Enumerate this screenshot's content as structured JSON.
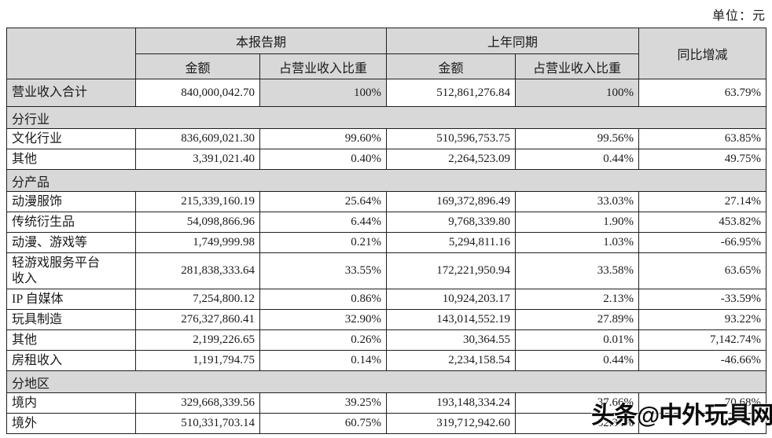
{
  "unit_label": "单位：元",
  "watermark": "头条@中外玩具网",
  "colors": {
    "shaded_bg": "#d8d8d8",
    "border": "#1f1f1f",
    "text": "#1a1a1a"
  },
  "table": {
    "header": {
      "current_period": "本报告期",
      "prior_period": "上年同期",
      "yoy_change": "同比增减",
      "amount": "金额",
      "share": "占营业收入比重"
    },
    "column_names": [
      "row-label",
      "current-amount",
      "current-share",
      "prior-amount",
      "prior-share",
      "yoy-change"
    ],
    "rows": [
      {
        "type": "total",
        "label": "营业收入合计",
        "cells": [
          "840,000,042.70",
          "100%",
          "512,861,276.84",
          "100%",
          "63.79%"
        ]
      },
      {
        "type": "section",
        "label": "分行业"
      },
      {
        "type": "data",
        "label": "文化行业",
        "cells": [
          "836,609,021.30",
          "99.60%",
          "510,596,753.75",
          "99.56%",
          "63.85%"
        ]
      },
      {
        "type": "data",
        "label": "其他",
        "cells": [
          "3,391,021.40",
          "0.40%",
          "2,264,523.09",
          "0.44%",
          "49.75%"
        ]
      },
      {
        "type": "section",
        "label": "分产品"
      },
      {
        "type": "data",
        "label": "动漫服饰",
        "cells": [
          "215,339,160.19",
          "25.64%",
          "169,372,896.49",
          "33.03%",
          "27.14%"
        ]
      },
      {
        "type": "data",
        "label": "传统衍生品",
        "cells": [
          "54,098,866.96",
          "6.44%",
          "9,768,339.80",
          "1.90%",
          "453.82%"
        ]
      },
      {
        "type": "data",
        "label": "动漫、游戏等",
        "cells": [
          "1,749,999.98",
          "0.21%",
          "5,294,811.16",
          "1.03%",
          "-66.95%"
        ]
      },
      {
        "type": "data",
        "label": "轻游戏服务平台\n收入",
        "tall": true,
        "cells": [
          "281,838,333.64",
          "33.55%",
          "172,221,950.94",
          "33.58%",
          "63.65%"
        ]
      },
      {
        "type": "data",
        "label": "IP 自媒体",
        "cells": [
          "7,254,800.12",
          "0.86%",
          "10,924,203.17",
          "2.13%",
          "-33.59%"
        ]
      },
      {
        "type": "data",
        "label": "玩具制造",
        "cells": [
          "276,327,860.41",
          "32.90%",
          "143,014,552.19",
          "27.89%",
          "93.22%"
        ]
      },
      {
        "type": "data",
        "label": "其他",
        "cells": [
          "2,199,226.65",
          "0.26%",
          "30,364.55",
          "0.01%",
          "7,142.74%"
        ]
      },
      {
        "type": "data",
        "label": "房租收入",
        "cells": [
          "1,191,794.75",
          "0.14%",
          "2,234,158.54",
          "0.44%",
          "-46.66%"
        ]
      },
      {
        "type": "section",
        "label": "分地区"
      },
      {
        "type": "data",
        "label": "境内",
        "cells": [
          "329,668,339.56",
          "39.25%",
          "193,148,334.24",
          "37.66%",
          "70.68%"
        ]
      },
      {
        "type": "data",
        "label": "境外",
        "cells": [
          "510,331,703.14",
          "60.75%",
          "319,712,942.60",
          "62.34%",
          ""
        ]
      }
    ]
  }
}
